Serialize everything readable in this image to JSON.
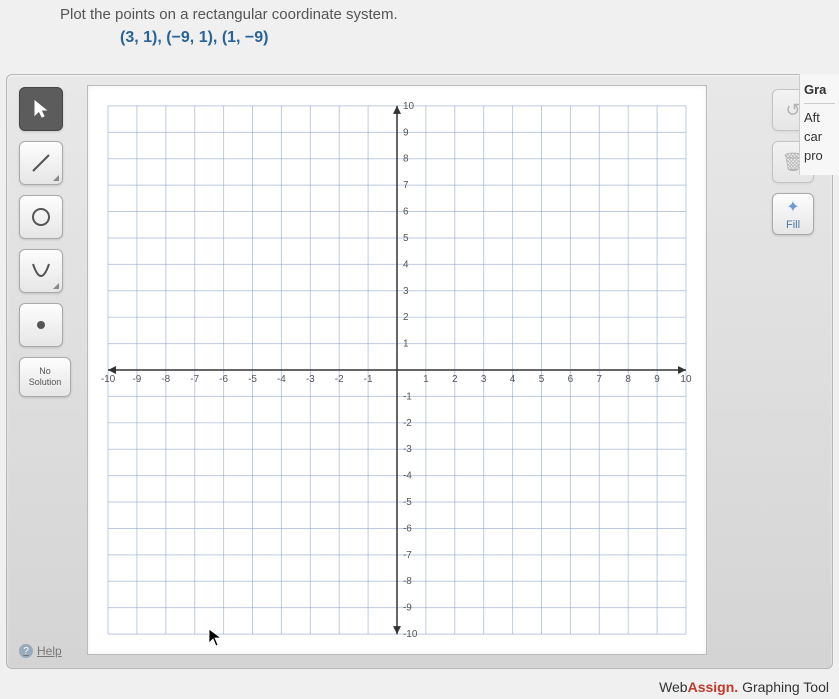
{
  "instruction": "Plot the points on a rectangular coordinate system.",
  "points_text": "(3, 1), (−9, 1), (1, −9)",
  "toolbar": {
    "pointer": {
      "name": "pointer-tool",
      "selected": true
    },
    "line": {
      "name": "line-tool",
      "selected": false
    },
    "circle": {
      "name": "circle-tool",
      "selected": false
    },
    "parabola": {
      "name": "parabola-tool",
      "selected": false
    },
    "point": {
      "name": "point-tool",
      "selected": false
    },
    "no_solution_label_1": "No",
    "no_solution_label_2": "Solution"
  },
  "right_tools": {
    "undo_label": "↺",
    "trash_label": "🗑",
    "fill_label": "Fill",
    "fill_icon": "✦"
  },
  "help_label": "Help",
  "side_panel": {
    "header": "Gra",
    "line1": "Aft",
    "line2": "car",
    "line3": "pro"
  },
  "footer": {
    "web": "Web",
    "assign": "Assign.",
    "rest": " Graphing Tool"
  },
  "chart": {
    "type": "cartesian-grid",
    "xlim": [
      -10,
      10
    ],
    "ylim": [
      -10,
      10
    ],
    "xtick_step": 1,
    "ytick_step": 1,
    "xlabel_step": 1,
    "ylabel_step": 1,
    "grid_color": "#8aa0c8",
    "axis_color": "#333333",
    "background_color": "#ffffff",
    "label_fontsize": 10,
    "label_color": "#555555",
    "plotted_points": []
  }
}
